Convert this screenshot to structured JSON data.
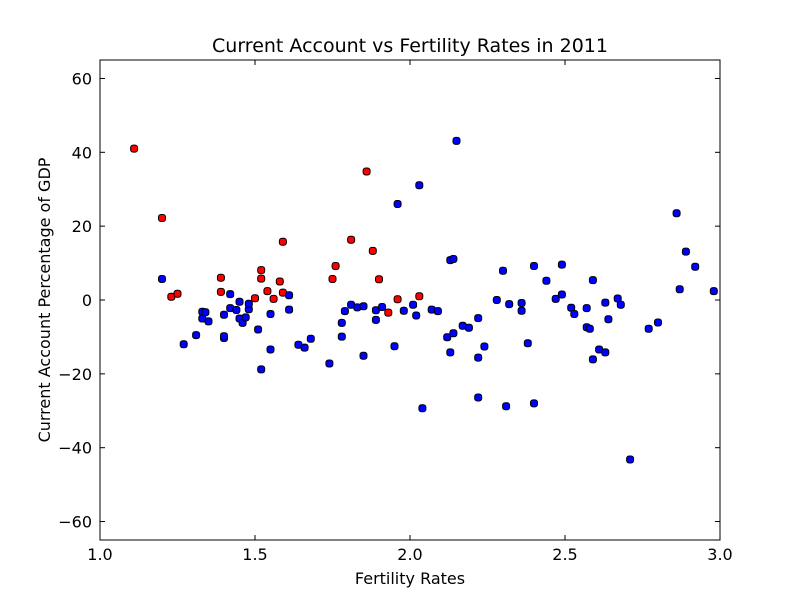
{
  "chart_data": {
    "type": "scatter",
    "title": "Current Account vs Fertility Rates in 2011",
    "xlabel": "Fertility Rates",
    "ylabel": "Current Account Percentage of GDP",
    "xlim": [
      1.0,
      3.0
    ],
    "ylim": [
      -65,
      65
    ],
    "xticks": [
      1.0,
      1.5,
      2.0,
      2.5,
      3.0
    ],
    "xtick_labels": [
      "1.0",
      "1.5",
      "2.0",
      "2.5",
      "3.0"
    ],
    "yticks": [
      60,
      40,
      20,
      0,
      -20,
      -40,
      -60
    ],
    "ytick_labels": [
      "60",
      "40",
      "20",
      "0",
      "−20",
      "−40",
      "−60"
    ],
    "grid": false,
    "colors": {
      "red": "#ff0000",
      "blue": "#0000ff",
      "edge": "#000000"
    },
    "series": [
      {
        "color": "red",
        "points": [
          [
            1.11,
            41
          ],
          [
            1.2,
            22.2
          ],
          [
            1.23,
            0.9
          ],
          [
            1.25,
            1.7
          ],
          [
            1.39,
            6
          ],
          [
            1.39,
            2.2
          ],
          [
            1.5,
            0.5
          ],
          [
            1.52,
            8.1
          ],
          [
            1.52,
            5.8
          ],
          [
            1.54,
            2.4
          ],
          [
            1.56,
            0.3
          ],
          [
            1.58,
            5
          ],
          [
            1.59,
            15.8
          ],
          [
            1.59,
            2
          ],
          [
            1.75,
            5.7
          ],
          [
            1.76,
            9.2
          ],
          [
            1.81,
            16.3
          ],
          [
            1.86,
            34.8
          ],
          [
            1.88,
            13.3
          ],
          [
            1.9,
            5.6
          ],
          [
            1.93,
            -3.4
          ],
          [
            1.96,
            0.2
          ],
          [
            2.03,
            1
          ]
        ]
      },
      {
        "color": "blue",
        "points": [
          [
            1.2,
            5.7
          ],
          [
            1.27,
            -12
          ],
          [
            1.31,
            -9.5
          ],
          [
            1.33,
            -3.2
          ],
          [
            1.34,
            -3.3
          ],
          [
            1.33,
            -5
          ],
          [
            1.35,
            -5.8
          ],
          [
            1.4,
            -10.3
          ],
          [
            1.4,
            -9.8
          ],
          [
            1.4,
            -4
          ],
          [
            1.42,
            1.6
          ],
          [
            1.42,
            -2.2
          ],
          [
            1.44,
            -2.7
          ],
          [
            1.45,
            -0.5
          ],
          [
            1.45,
            -5
          ],
          [
            1.46,
            -6.2
          ],
          [
            1.47,
            -4.7
          ],
          [
            1.48,
            -2.5
          ],
          [
            1.48,
            -1
          ],
          [
            1.51,
            -8
          ],
          [
            1.52,
            -18.8
          ],
          [
            1.55,
            -3.8
          ],
          [
            1.55,
            -13.4
          ],
          [
            1.61,
            -2.6
          ],
          [
            1.61,
            1.3
          ],
          [
            1.64,
            -12.1
          ],
          [
            1.66,
            -12.9
          ],
          [
            1.68,
            -10.5
          ],
          [
            1.74,
            -17.2
          ],
          [
            1.78,
            -9.9
          ],
          [
            1.78,
            -6.2
          ],
          [
            1.79,
            -3
          ],
          [
            1.81,
            -1.3
          ],
          [
            1.83,
            -2
          ],
          [
            1.85,
            -15.1
          ],
          [
            1.85,
            -1.7
          ],
          [
            1.89,
            -5.4
          ],
          [
            1.89,
            -2.8
          ],
          [
            1.91,
            -1.9
          ],
          [
            1.95,
            -12.5
          ],
          [
            1.96,
            26
          ],
          [
            1.98,
            -2.9
          ],
          [
            2.01,
            -1.3
          ],
          [
            2.02,
            -4.2
          ],
          [
            2.03,
            31.1
          ],
          [
            2.04,
            -29.3
          ],
          [
            2.07,
            -2.6
          ],
          [
            2.09,
            -3
          ],
          [
            2.12,
            -10.1
          ],
          [
            2.13,
            10.8
          ],
          [
            2.14,
            11.1
          ],
          [
            2.13,
            -14.2
          ],
          [
            2.14,
            -9
          ],
          [
            2.15,
            43.1
          ],
          [
            2.17,
            -7
          ],
          [
            2.19,
            -7.5
          ],
          [
            2.22,
            -4.9
          ],
          [
            2.22,
            -15.6
          ],
          [
            2.22,
            -26.4
          ],
          [
            2.24,
            -12.6
          ],
          [
            2.28,
            0
          ],
          [
            2.3,
            7.9
          ],
          [
            2.31,
            -28.8
          ],
          [
            2.32,
            -1.1
          ],
          [
            2.36,
            -0.8
          ],
          [
            2.36,
            -2.9
          ],
          [
            2.38,
            -11.7
          ],
          [
            2.4,
            9.2
          ],
          [
            2.4,
            -28
          ],
          [
            2.44,
            5.2
          ],
          [
            2.47,
            0.3
          ],
          [
            2.49,
            1.5
          ],
          [
            2.49,
            9.6
          ],
          [
            2.52,
            -2.1
          ],
          [
            2.53,
            -3.8
          ],
          [
            2.57,
            -7.4
          ],
          [
            2.57,
            -2.2
          ],
          [
            2.58,
            -7.8
          ],
          [
            2.59,
            5.4
          ],
          [
            2.59,
            -16.1
          ],
          [
            2.61,
            -13.4
          ],
          [
            2.63,
            -14.2
          ],
          [
            2.63,
            -0.7
          ],
          [
            2.64,
            -5.2
          ],
          [
            2.67,
            0.4
          ],
          [
            2.68,
            -1.3
          ],
          [
            2.71,
            -43.2
          ],
          [
            2.77,
            -7.8
          ],
          [
            2.8,
            -6.1
          ],
          [
            2.86,
            23.5
          ],
          [
            2.87,
            2.9
          ],
          [
            2.89,
            13.1
          ],
          [
            2.92,
            9
          ],
          [
            2.98,
            2.4
          ]
        ]
      }
    ]
  }
}
